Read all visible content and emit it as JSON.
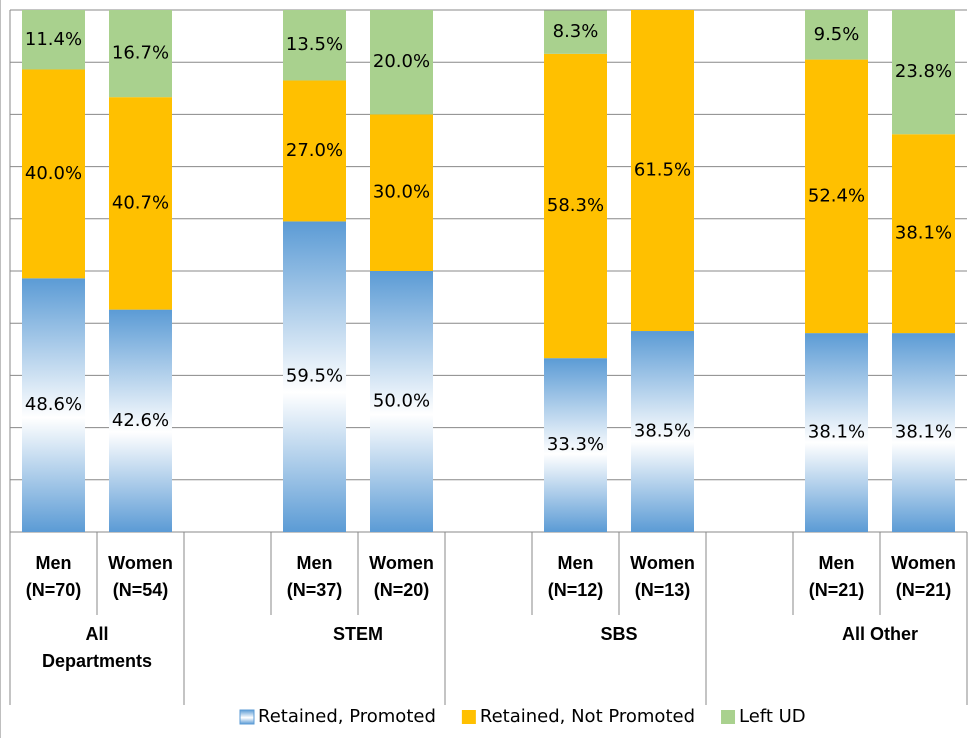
{
  "chart_data": {
    "type": "stacked_bar",
    "categories": [
      "Men (N=70)",
      "Women (N=54)",
      null,
      "Men (N=37)",
      "Women (N=20)",
      null,
      "Men (N=12)",
      "Women (N=13)",
      null,
      "Men (N=21)",
      "Women (N=21)"
    ],
    "groups": [
      "All Departments",
      "STEM",
      "SBS",
      "All Other"
    ],
    "series": [
      {
        "name": "Retained, Promoted",
        "color": "#5b9bd5",
        "values": [
          48.6,
          42.6,
          null,
          59.5,
          50.0,
          null,
          33.3,
          38.5,
          null,
          38.1,
          38.1
        ],
        "value_labels": [
          "48.6%",
          "42.6%",
          null,
          "59.5%",
          "50.0%",
          null,
          "33.3%",
          "38.5%",
          null,
          "38.1%",
          "38.1%"
        ]
      },
      {
        "name": "Retained, Not Promoted",
        "color": "#ffc000",
        "values": [
          40.0,
          40.7,
          null,
          27.0,
          30.0,
          null,
          58.3,
          61.5,
          null,
          52.4,
          38.1
        ],
        "value_labels": [
          "40.0%",
          "40.7%",
          null,
          "27.0%",
          "30.0%",
          null,
          "58.3%",
          "61.5%",
          null,
          "52.4%",
          "38.1%"
        ]
      },
      {
        "name": "Left UD",
        "color": "#a9d18e",
        "values": [
          11.4,
          16.7,
          null,
          13.5,
          20.0,
          null,
          8.3,
          0,
          null,
          9.5,
          23.8
        ],
        "value_labels": [
          "11.4%",
          "16.7%",
          null,
          "13.5%",
          "20.0%",
          null,
          "8.3%",
          null,
          null,
          "9.5%",
          "23.8%"
        ]
      }
    ],
    "ylim": [
      0,
      100
    ],
    "yticks": [
      0,
      10,
      20,
      30,
      40,
      50,
      60,
      70,
      80,
      90,
      100
    ],
    "grid": true,
    "legend": "bottom"
  }
}
